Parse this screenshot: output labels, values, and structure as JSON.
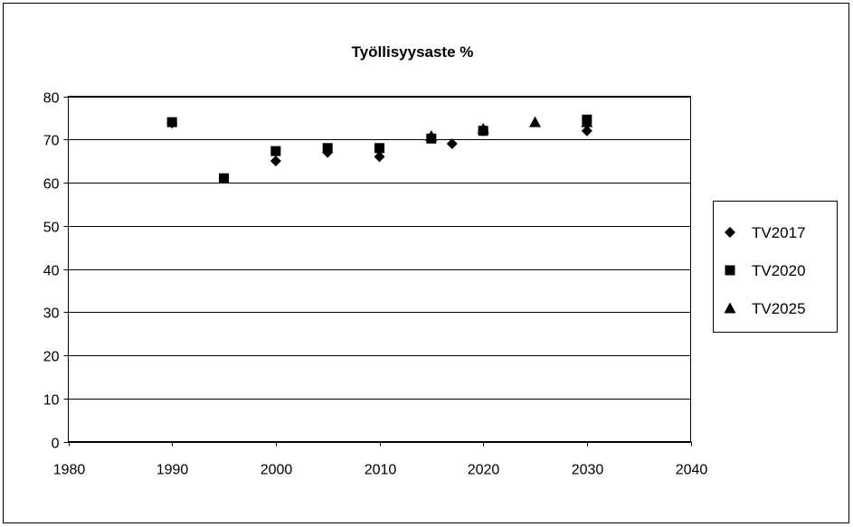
{
  "chart_data": {
    "type": "scatter",
    "title": "Työllisyysaste %",
    "xlabel": "",
    "ylabel": "",
    "xlim": [
      1980,
      2040
    ],
    "ylim": [
      0,
      80
    ],
    "x_ticks": [
      1980,
      1990,
      2000,
      2010,
      2020,
      2030,
      2040
    ],
    "y_ticks": [
      0,
      10,
      20,
      30,
      40,
      50,
      60,
      70,
      80
    ],
    "grid": "horizontal",
    "legend_position": "right",
    "series": [
      {
        "name": "TV2017",
        "marker": "diamond",
        "color": "#000000",
        "points": [
          {
            "x": 1990,
            "y": 73.8
          },
          {
            "x": 1995,
            "y": 61.0
          },
          {
            "x": 2000,
            "y": 65.0
          },
          {
            "x": 2005,
            "y": 67.0
          },
          {
            "x": 2010,
            "y": 66.0
          },
          {
            "x": 2010,
            "y": 67.5
          },
          {
            "x": 2015,
            "y": 70.5
          },
          {
            "x": 2017,
            "y": 69.0
          },
          {
            "x": 2020,
            "y": 72.0
          },
          {
            "x": 2030,
            "y": 72.0
          }
        ]
      },
      {
        "name": "TV2020",
        "marker": "square",
        "color": "#000000",
        "points": [
          {
            "x": 1990,
            "y": 74.0
          },
          {
            "x": 1995,
            "y": 61.0
          },
          {
            "x": 2000,
            "y": 67.3
          },
          {
            "x": 2005,
            "y": 68.0
          },
          {
            "x": 2010,
            "y": 68.0
          },
          {
            "x": 2015,
            "y": 70.2
          },
          {
            "x": 2020,
            "y": 72.0
          },
          {
            "x": 2030,
            "y": 74.6
          }
        ]
      },
      {
        "name": "TV2025",
        "marker": "triangle",
        "color": "#000000",
        "points": [
          {
            "x": 2015,
            "y": 70.8
          },
          {
            "x": 2020,
            "y": 72.5
          },
          {
            "x": 2025,
            "y": 74.0
          },
          {
            "x": 2030,
            "y": 74.0
          }
        ]
      }
    ]
  }
}
